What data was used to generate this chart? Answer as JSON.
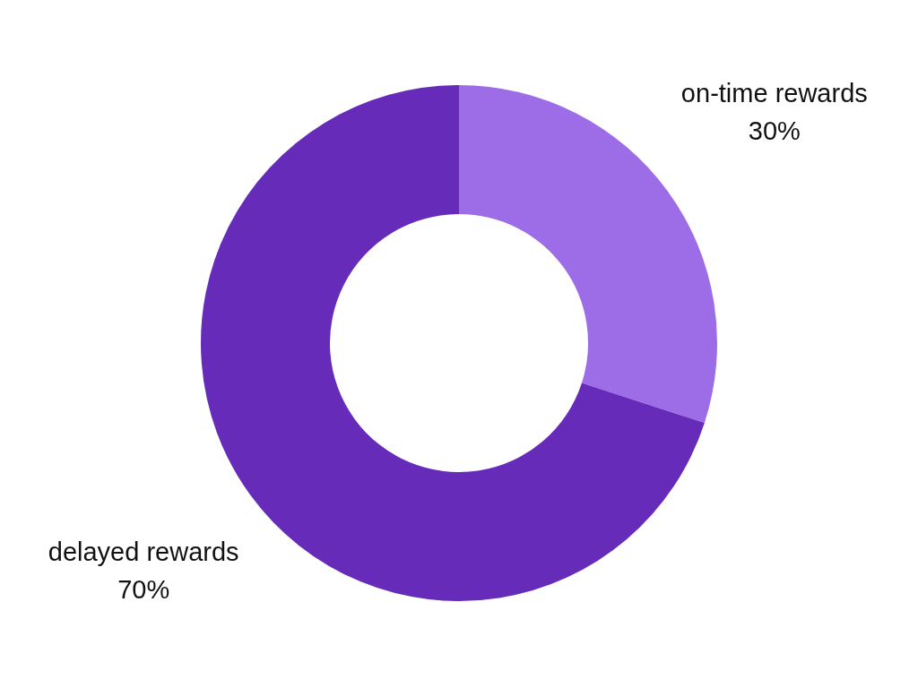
{
  "chart_data": {
    "type": "donut",
    "categories": [
      "on-time rewards",
      "delayed rewards"
    ],
    "values": [
      30,
      70
    ],
    "value_labels": [
      "30%",
      "70%"
    ],
    "colors": [
      "#9d6de8",
      "#662bb8"
    ],
    "legend": false
  }
}
